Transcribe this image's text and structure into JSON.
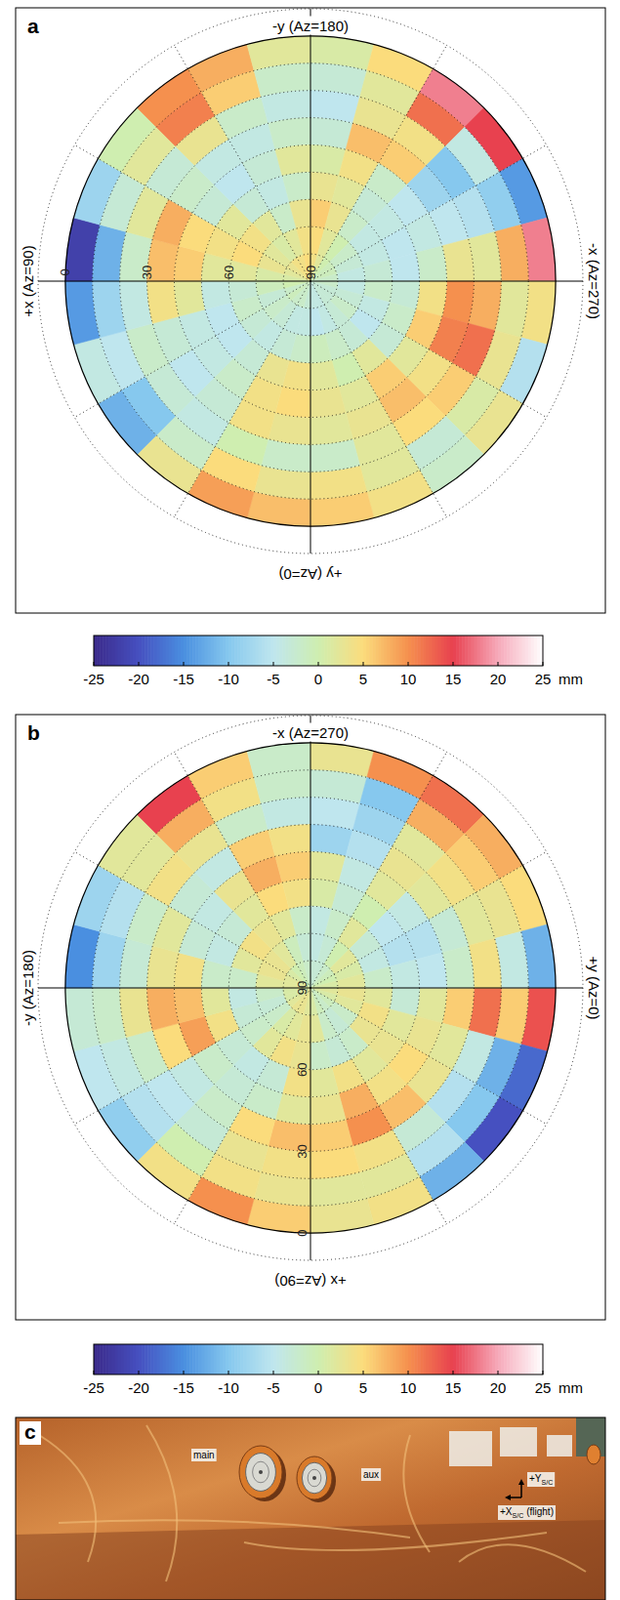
{
  "chart_data": [
    {
      "type": "polar_heatmap",
      "label": "a",
      "directions": [
        {
          "label": "-y (Az=180)",
          "az": 180,
          "side": "top"
        },
        {
          "label": "-x (Az=270)",
          "az": 270,
          "side": "right"
        },
        {
          "label": "+y (Az=0)",
          "az": 0,
          "side": "bottom"
        },
        {
          "label": "+x (Az=90)",
          "az": 90,
          "side": "left"
        }
      ],
      "rlim": [
        90,
        -10
      ],
      "rticks": [
        0,
        30,
        60,
        90
      ],
      "azticks": [
        0,
        30,
        60,
        90,
        120,
        150,
        180,
        210,
        240,
        270,
        300,
        330
      ],
      "az_bins": [
        0,
        15,
        30,
        45,
        60,
        75,
        90,
        105,
        120,
        135,
        150,
        165,
        180,
        195,
        210,
        225,
        240,
        255,
        270,
        285,
        300,
        315,
        330,
        345,
        360
      ],
      "el_bins": [
        0,
        10,
        20,
        30,
        40,
        50,
        60,
        70,
        80,
        90
      ],
      "cells": [
        [
          7,
          9,
          3,
          -12,
          -4,
          -14,
          -22,
          -8,
          0,
          10,
          8,
          2,
          1,
          5,
          18,
          15,
          -14,
          18,
          4,
          -6,
          3,
          -2,
          4,
          6
        ],
        [
          3,
          5,
          -2,
          -10,
          -5,
          -8,
          -12,
          -3,
          2,
          11,
          6,
          -2,
          -3,
          2,
          12,
          -4,
          -9,
          8,
          2,
          3,
          1,
          -3,
          2,
          4
        ],
        [
          -2,
          0,
          -4,
          -3,
          -2,
          -4,
          -2,
          2,
          -3,
          3,
          -2,
          -4,
          -5,
          3,
          4,
          -10,
          -6,
          2,
          8,
          12,
          6,
          5,
          2,
          -2
        ],
        [
          3,
          4,
          -3,
          -5,
          -3,
          4,
          7,
          8,
          -2,
          -4,
          -4,
          -2,
          -3,
          7,
          6,
          -8,
          -5,
          3,
          10,
          11,
          4,
          7,
          3,
          2
        ],
        [
          5,
          4,
          -2,
          -4,
          -4,
          2,
          6,
          5,
          -3,
          -5,
          -3,
          2,
          1,
          4,
          -2,
          -5,
          -4,
          -2,
          4,
          6,
          2,
          6,
          2,
          3
        ],
        [
          4,
          3,
          -3,
          -5,
          -5,
          -4,
          2,
          4,
          2,
          -3,
          -4,
          -2,
          3,
          2,
          -3,
          -4,
          -5,
          -5,
          -3,
          -2,
          -3,
          2,
          0,
          2
        ],
        [
          -2,
          -3,
          -4,
          -3,
          -2,
          -3,
          2,
          5,
          4,
          2,
          -2,
          3,
          6,
          3,
          -2,
          -4,
          -4,
          -3,
          -2,
          -4,
          -5,
          -3,
          -2,
          -1
        ],
        [
          -4,
          -4,
          -3,
          -2,
          -3,
          -1,
          1,
          3,
          2,
          1,
          2,
          4,
          5,
          2,
          0,
          -2,
          -3,
          -4,
          -4,
          -3,
          -2,
          -3,
          -4,
          -5
        ],
        [
          -3,
          -2,
          -2,
          -1,
          -2,
          0,
          1,
          2,
          3,
          4,
          4,
          5,
          4,
          2,
          0,
          -1,
          -1,
          -2,
          -2,
          -3,
          -3,
          -3,
          -4,
          -4
        ]
      ],
      "colorbar": {
        "range": [
          -25,
          25
        ],
        "ticks": [
          -25,
          -20,
          -15,
          -10,
          -5,
          0,
          5,
          10,
          15,
          20,
          25
        ],
        "unit": "mm"
      }
    },
    {
      "type": "polar_heatmap",
      "label": "b",
      "directions": [
        {
          "label": "-x (Az=270)",
          "az": 270,
          "side": "top"
        },
        {
          "label": "+y (Az=0)",
          "az": 0,
          "side": "right"
        },
        {
          "label": "+x (Az=90)",
          "az": 90,
          "side": "bottom"
        },
        {
          "label": "-y (Az=180)",
          "az": 180,
          "side": "left"
        }
      ],
      "rlim": [
        90,
        -10
      ],
      "rticks": [
        0,
        30,
        60,
        90
      ],
      "azticks": [
        0,
        30,
        60,
        90,
        120,
        150,
        180,
        210,
        240,
        270,
        300,
        330
      ],
      "az_bins": [
        0,
        15,
        30,
        45,
        60,
        75,
        90,
        105,
        120,
        135,
        150,
        165,
        180,
        195,
        210,
        225,
        240,
        255,
        270,
        285,
        300,
        315,
        330,
        345,
        360
      ],
      "el_bins": [
        0,
        10,
        20,
        30,
        40,
        50,
        60,
        70,
        80,
        90
      ],
      "cells": [
        [
          14,
          -18,
          -20,
          -12,
          4,
          3,
          6,
          10,
          4,
          -9,
          -5,
          -3,
          -15,
          -8,
          2,
          15,
          6,
          -2,
          3,
          10,
          12,
          8,
          5,
          -12
        ],
        [
          6,
          -12,
          -10,
          -6,
          2,
          2,
          3,
          4,
          0,
          -6,
          -4,
          -2,
          -8,
          -6,
          2,
          8,
          4,
          -2,
          -3,
          -10,
          8,
          6,
          3,
          -4
        ],
        [
          12,
          -4,
          -6,
          -3,
          4,
          5,
          4,
          3,
          -3,
          -5,
          -2,
          3,
          -3,
          -2,
          4,
          3,
          -2,
          -4,
          -5,
          -8,
          2,
          4,
          2,
          4
        ],
        [
          6,
          2,
          3,
          7,
          10,
          6,
          7,
          5,
          -2,
          -4,
          5,
          8,
          3,
          2,
          -3,
          -4,
          6,
          4,
          -8,
          -6,
          3,
          2,
          -3,
          -2
        ],
        [
          2,
          3,
          5,
          4,
          8,
          3,
          2,
          -2,
          -3,
          -2,
          9,
          7,
          4,
          -3,
          -4,
          3,
          8,
          6,
          2,
          -4,
          2,
          -4,
          -6,
          -5
        ],
        [
          -3,
          2,
          3,
          2,
          4,
          2,
          4,
          -3,
          -4,
          -3,
          4,
          2,
          -2,
          -4,
          -3,
          2,
          5,
          4,
          1,
          -3,
          0,
          -5,
          -6,
          -4
        ],
        [
          2,
          4,
          3,
          -2,
          -3,
          -2,
          3,
          4,
          2,
          -2,
          -3,
          -4,
          -2,
          2,
          4,
          3,
          2,
          -2,
          -4,
          -2,
          2,
          -3,
          -4,
          -2
        ],
        [
          3,
          2,
          -2,
          -3,
          -2,
          2,
          3,
          2,
          1,
          -2,
          -3,
          -2,
          2,
          3,
          3,
          2,
          -1,
          -3,
          -4,
          -3,
          0,
          2,
          1,
          2
        ],
        [
          2,
          1,
          -1,
          -2,
          -1,
          1,
          2,
          3,
          3,
          2,
          1,
          1,
          2,
          2,
          1,
          0,
          -1,
          -2,
          -3,
          -3,
          -2,
          -1,
          0,
          1
        ]
      ],
      "colorbar": {
        "range": [
          -25,
          25
        ],
        "ticks": [
          -25,
          -20,
          -15,
          -10,
          -5,
          0,
          5,
          10,
          15,
          20,
          25
        ],
        "unit": "mm"
      }
    }
  ],
  "photo": {
    "label": "c",
    "main": "main",
    "aux": "aux",
    "y_axis": "+Y",
    "y_sub": "S/C",
    "x_axis": "+X",
    "x_sub": "S/C",
    "x_note": "(flight)"
  }
}
